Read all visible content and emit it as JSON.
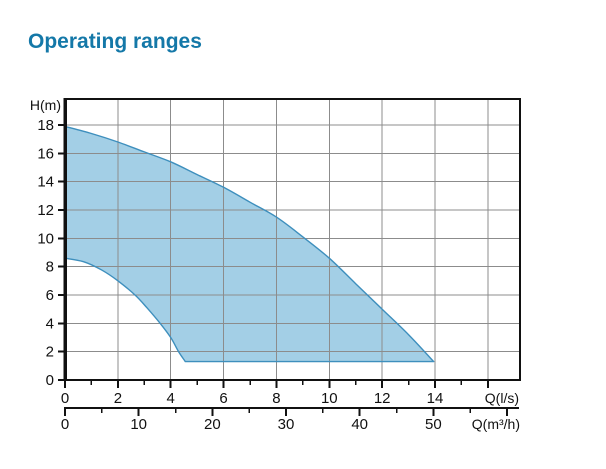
{
  "page": {
    "title": "Operating ranges"
  },
  "colors": {
    "title": "#1478a8",
    "region_fill": "#a3cfe6",
    "region_stroke": "#3e8fbd",
    "gridline": "#8c8c8c",
    "axis": "#111111"
  },
  "chart_data": {
    "type": "area",
    "title": "Operating ranges",
    "grid": "on",
    "y_axis": {
      "label": "H(m)",
      "min": 0,
      "max": 19.8,
      "labeled_ticks": [
        0,
        2,
        4,
        6,
        8,
        10,
        12,
        14,
        16,
        18
      ]
    },
    "x_axis_primary": {
      "label": "Q(l/s)",
      "min": 0,
      "max": 17.2,
      "labeled_ticks": [
        0,
        2,
        4,
        6,
        8,
        10,
        12,
        14
      ],
      "minor_tick_step": 1,
      "tick_extent": 16
    },
    "x_axis_secondary": {
      "label": "Q(m³/h)",
      "min": 0,
      "max": 61.5,
      "labeled_ticks": [
        0,
        10,
        20,
        30,
        40,
        50
      ],
      "minor_tick_step": 5,
      "tick_extent": 60
    },
    "series": [
      {
        "name": "upper-boundary",
        "units": [
          "Q l/s",
          "H m"
        ],
        "points": [
          [
            0,
            17.9
          ],
          [
            1,
            17.4
          ],
          [
            2,
            16.8
          ],
          [
            3,
            16.1
          ],
          [
            4,
            15.4
          ],
          [
            5,
            14.5
          ],
          [
            6,
            13.6
          ],
          [
            7,
            12.55
          ],
          [
            8,
            11.5
          ],
          [
            9,
            10.1
          ],
          [
            10,
            8.6
          ],
          [
            11,
            6.8
          ],
          [
            12,
            5.0
          ],
          [
            13,
            3.2
          ],
          [
            13.95,
            1.3
          ]
        ]
      },
      {
        "name": "lower-boundary",
        "units": [
          "Q l/s",
          "H m"
        ],
        "points": [
          [
            0,
            8.6
          ],
          [
            0.7,
            8.35
          ],
          [
            1.4,
            7.75
          ],
          [
            2,
            7.0
          ],
          [
            2.65,
            6.0
          ],
          [
            3.1,
            5.1
          ],
          [
            3.6,
            4.0
          ],
          [
            4.0,
            3.0
          ],
          [
            4.3,
            2.0
          ],
          [
            4.55,
            1.3
          ]
        ]
      },
      {
        "name": "bottom-flat",
        "units": [
          "Q l/s",
          "H m"
        ],
        "points": [
          [
            4.55,
            1.3
          ],
          [
            13.95,
            1.3
          ]
        ]
      }
    ]
  }
}
